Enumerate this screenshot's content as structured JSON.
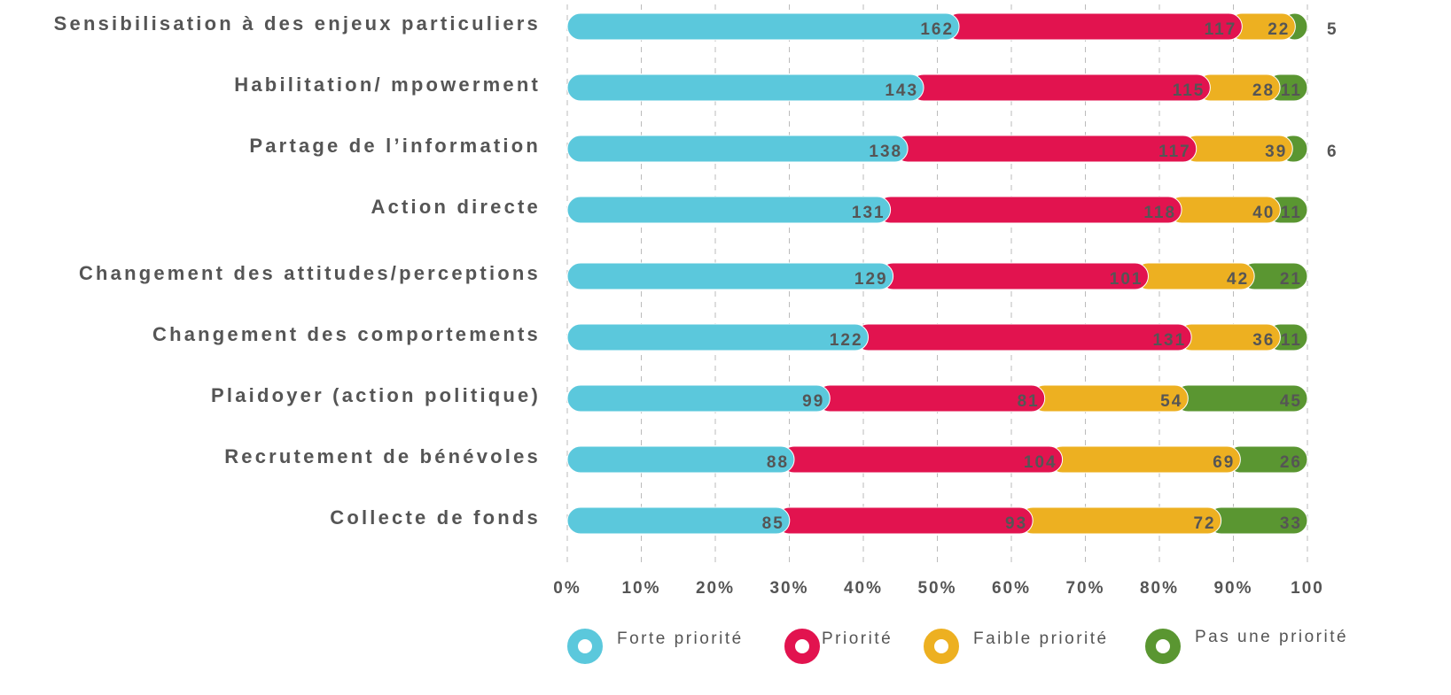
{
  "chart_data": {
    "type": "bar",
    "orientation": "horizontal",
    "stacking": "percent",
    "categories": [
      "Sensibilisation à des enjeux particuliers",
      "Habilitation/ mpowerment",
      "Partage de l’information",
      "Action directe",
      "Changement des attitudes/perceptions",
      "Changement des comportements",
      "Plaidoyer (action politique)",
      "Recrutement de bénévoles",
      "Collecte de fonds"
    ],
    "series": [
      {
        "name": "Forte priorité",
        "color": "#5bc8dc",
        "values": [
          162,
          143,
          138,
          131,
          129,
          122,
          99,
          88,
          85
        ]
      },
      {
        "name": "Priorité",
        "color": "#e2134f",
        "values": [
          117,
          115,
          117,
          118,
          101,
          131,
          81,
          104,
          93
        ]
      },
      {
        "name": "Faible priorité",
        "color": "#edb021",
        "values": [
          22,
          28,
          39,
          40,
          42,
          36,
          54,
          69,
          72
        ]
      },
      {
        "name": "Pas une priorité",
        "color": "#5a9631",
        "values": [
          5,
          11,
          6,
          11,
          21,
          11,
          45,
          26,
          33
        ]
      }
    ],
    "xlim": [
      0,
      100
    ],
    "xticks": [
      {
        "value": 0,
        "label": "0%"
      },
      {
        "value": 10,
        "label": "10%"
      },
      {
        "value": 20,
        "label": "20%"
      },
      {
        "value": 30,
        "label": "30%"
      },
      {
        "value": 40,
        "label": "40%"
      },
      {
        "value": 50,
        "label": "50%"
      },
      {
        "value": 60,
        "label": "60%"
      },
      {
        "value": 70,
        "label": "70%"
      },
      {
        "value": 80,
        "label": "80%"
      },
      {
        "value": 90,
        "label": "90%"
      },
      100
    ],
    "grid": true,
    "legend": "bottom"
  }
}
